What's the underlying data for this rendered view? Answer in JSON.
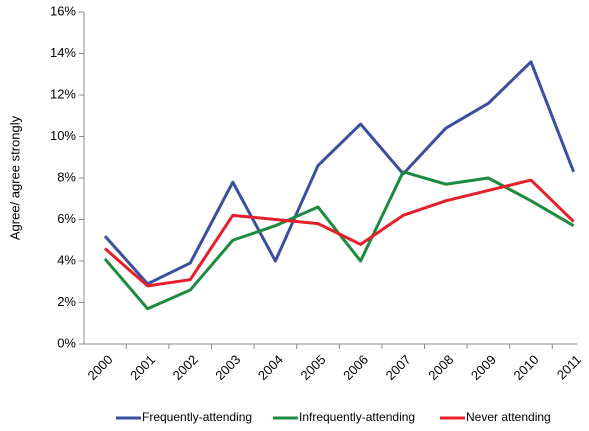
{
  "chart_data": {
    "type": "line",
    "y_label": "Agree/ agree strongly",
    "categories": [
      "2000",
      "2001",
      "2002",
      "2003",
      "2004",
      "2005",
      "2006",
      "2007",
      "2008",
      "2009",
      "2010",
      "2011"
    ],
    "series": [
      {
        "name": "Frequently-attending",
        "color": "#3a4f9f",
        "values": [
          5.2,
          2.9,
          3.9,
          7.8,
          4.0,
          8.6,
          10.6,
          8.2,
          10.4,
          11.6,
          13.6,
          8.3
        ]
      },
      {
        "name": "Infrequently-attending",
        "color": "#1d8a3f",
        "values": [
          4.1,
          1.7,
          2.6,
          5.0,
          5.7,
          6.6,
          4.0,
          8.3,
          7.7,
          8.0,
          6.9,
          5.7
        ]
      },
      {
        "name": "Never attending",
        "color": "#e6202b",
        "values": [
          4.6,
          2.8,
          3.1,
          6.2,
          6.0,
          5.8,
          4.8,
          6.2,
          6.9,
          7.4,
          7.9,
          5.9
        ]
      }
    ],
    "ylim": [
      0,
      16
    ],
    "yticks": [
      {
        "value": 0,
        "label": "0%"
      },
      {
        "value": 2,
        "label": "2%"
      },
      {
        "value": 4,
        "label": "4%"
      },
      {
        "value": 6,
        "label": "6%"
      },
      {
        "value": 8,
        "label": "8%"
      },
      {
        "value": 10,
        "label": "10%"
      },
      {
        "value": 12,
        "label": "12%"
      },
      {
        "value": 14,
        "label": "14%"
      },
      {
        "value": 16,
        "label": "16%"
      }
    ],
    "grid": false,
    "legend": "bottom"
  }
}
